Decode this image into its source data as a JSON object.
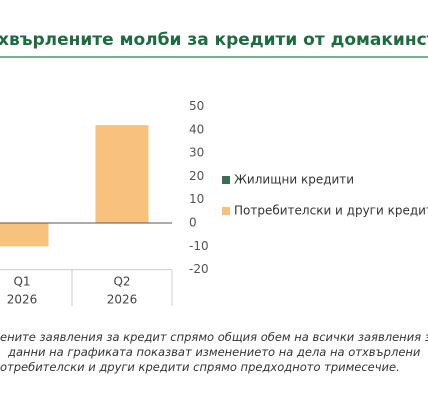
{
  "chart_data": {
    "type": "bar",
    "title": "хвърлените молби за кредити от домакинствата",
    "categories": [
      [
        "Q1",
        "2026"
      ],
      [
        "Q2",
        "2026"
      ]
    ],
    "series": [
      {
        "name": "Жилищни кредити",
        "color": "#3b6e55",
        "values": [
          null,
          null
        ]
      },
      {
        "name": "Потребителски и други кредити",
        "color": "#f8c27e",
        "values": [
          -10,
          42
        ]
      }
    ],
    "ylim": [
      -20,
      50
    ],
    "yticks": [
      50,
      40,
      30,
      20,
      10,
      0,
      -10,
      -20
    ],
    "grid": false,
    "footnote": [
      "ените заявления за кредит спрямо общия обем на всички заявления з",
      "данни на графиката показват изменението на дела на отхвърлени",
      "отребителски и други кредити спрямо предходното тримесечие."
    ]
  }
}
